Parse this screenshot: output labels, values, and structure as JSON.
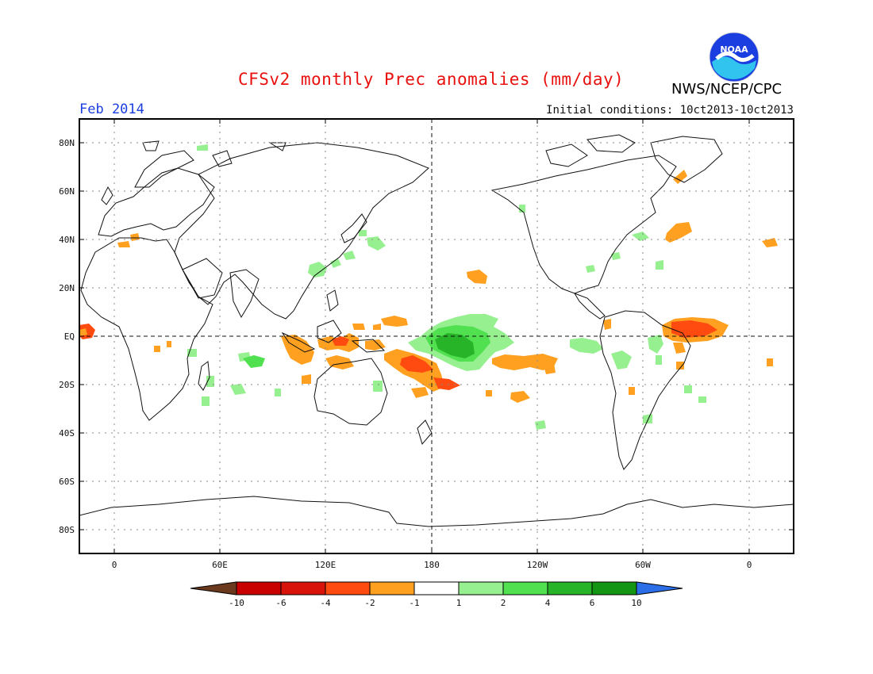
{
  "title": "CFSv2 monthly Prec anomalies (mm/day)",
  "valid_month": "Feb 2014",
  "initial_conditions": "Initial conditions: 10ct2013-10ct2013",
  "agency": "NWS/NCEP/CPC",
  "logo_text": "NOAA",
  "lat_labels": [
    "80N",
    "60N",
    "40N",
    "20N",
    "EQ",
    "20S",
    "40S",
    "60S",
    "80S"
  ],
  "lon_labels": [
    "0",
    "60E",
    "120E",
    "180",
    "120W",
    "60W",
    "0"
  ],
  "colorbar": {
    "labels": [
      "-10",
      "-6",
      "-4",
      "-2",
      "-1",
      "1",
      "2",
      "4",
      "6",
      "10"
    ],
    "colors": [
      "#6b3a1e",
      "#c80000",
      "#d8140a",
      "#ff4a10",
      "#ffa020",
      "#ffffff",
      "#96f090",
      "#50e050",
      "#28b428",
      "#149614",
      "#2c6ee8"
    ]
  },
  "colors": {
    "title": "#e8100e",
    "month": "#1b3ee0",
    "dry_strong": "#ff4a10",
    "dry_moderate": "#ffa020",
    "wet_light": "#96f090",
    "wet_moderate": "#50e050",
    "wet_strong": "#28b428"
  }
}
